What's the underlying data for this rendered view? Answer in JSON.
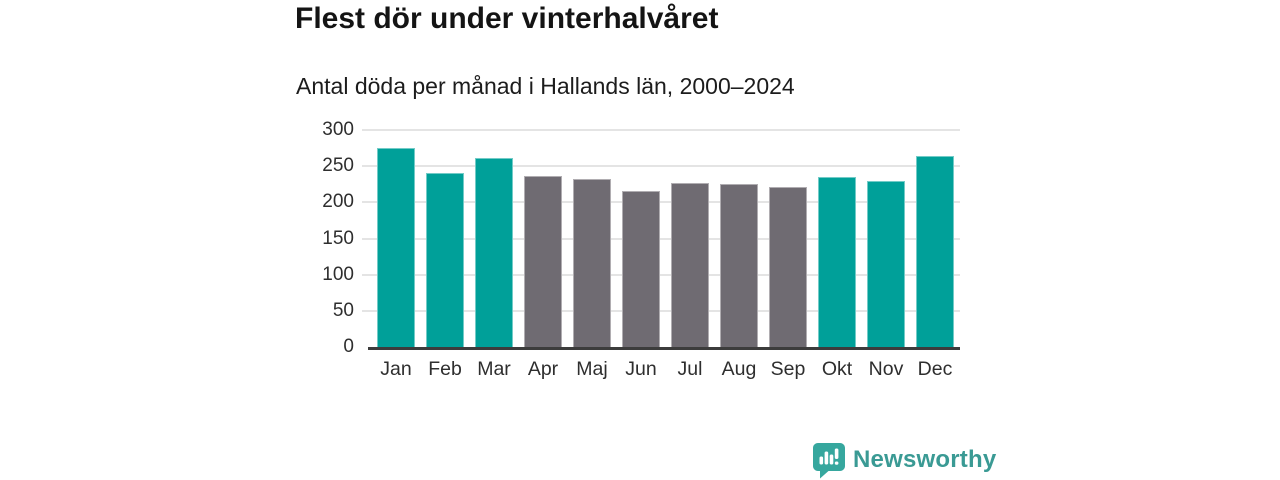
{
  "title": "Flest dör under vinterhalvåret",
  "subtitle": "Antal döda per månad i Hallands län, 2000–2024",
  "footer": {
    "brand": "Newsworthy",
    "logo_icon": "newsworthy-speech-bubble-bar-chart-icon"
  },
  "colors": {
    "highlight_teal": "#00a099",
    "muted_gray": "#6f6b72",
    "gridline": "#e4e4e4",
    "axis": "#3c3c3c",
    "brand_teal": "#3a9a94",
    "logo_bubble_teal": "#36a79e"
  },
  "chart_data": {
    "type": "bar",
    "title": "Flest dör under vinterhalvåret",
    "subtitle": "Antal döda per månad i Hallands län, 2000–2024",
    "categories": [
      "Jan",
      "Feb",
      "Mar",
      "Apr",
      "Maj",
      "Jun",
      "Jul",
      "Aug",
      "Sep",
      "Okt",
      "Nov",
      "Dec"
    ],
    "values": [
      275,
      240,
      262,
      237,
      232,
      216,
      227,
      226,
      221,
      235,
      230,
      264
    ],
    "bar_colors": [
      "#00a099",
      "#00a099",
      "#00a099",
      "#6f6b72",
      "#6f6b72",
      "#6f6b72",
      "#6f6b72",
      "#6f6b72",
      "#6f6b72",
      "#00a099",
      "#00a099",
      "#00a099"
    ],
    "highlighted_months": [
      "Jan",
      "Feb",
      "Mar",
      "Okt",
      "Nov",
      "Dec"
    ],
    "xlabel": "",
    "ylabel": "",
    "ylim": [
      0,
      300
    ],
    "yticks": [
      0,
      50,
      100,
      150,
      200,
      250,
      300
    ],
    "grid": true,
    "legend_position": "none"
  }
}
